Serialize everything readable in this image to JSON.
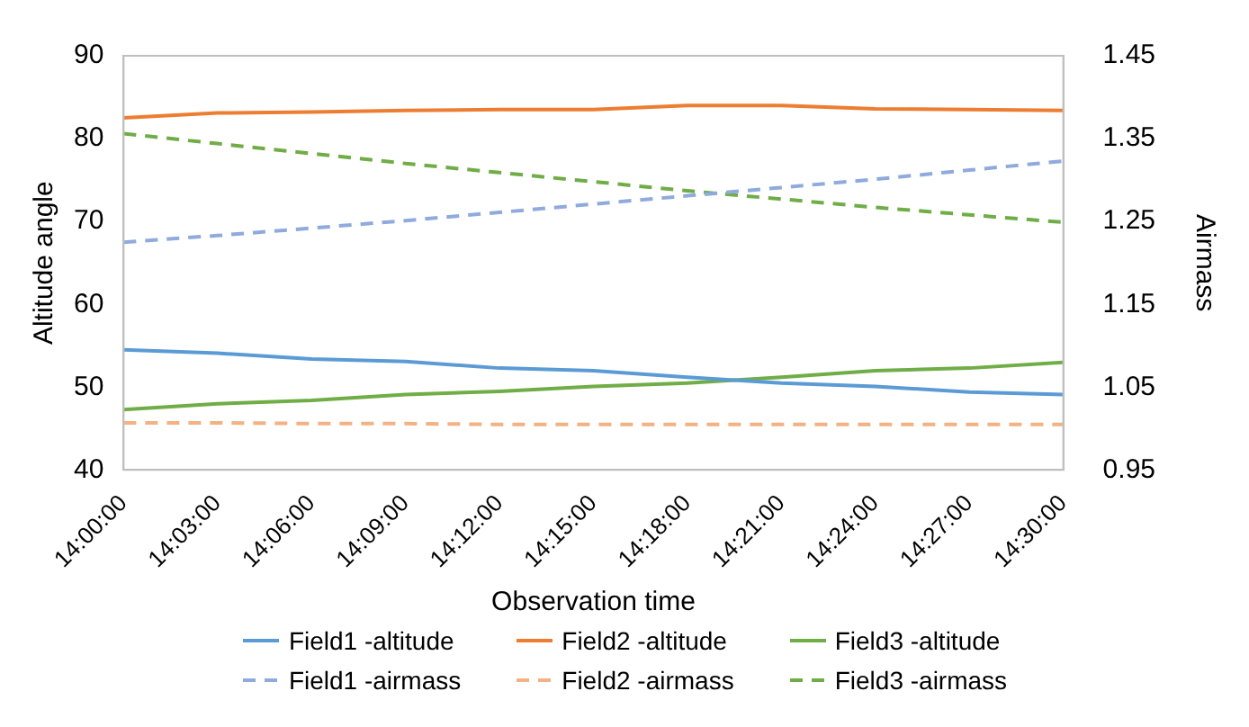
{
  "chart_data": {
    "type": "line",
    "xlabel": "Observation time",
    "ylabel": "Altitude angle",
    "y2label": "Airmass",
    "categories": [
      "14:00:00",
      "14:03:00",
      "14:06:00",
      "14:09:00",
      "14:12:00",
      "14:15:00",
      "14:18:00",
      "14:21:00",
      "14:24:00",
      "14:27:00",
      "14:30:00"
    ],
    "series": [
      {
        "name": "Field1 -altitude",
        "color": "#5b9bd5",
        "line_style": "solid",
        "values": [
          54.5,
          54.1,
          53.4,
          53.1,
          52.3,
          52.0,
          51.2,
          50.5,
          50.1,
          49.4,
          49.1
        ]
      },
      {
        "name": "Field2 -altitude",
        "color": "#ed7d31",
        "line_style": "solid",
        "values": [
          82.5,
          83.1,
          83.2,
          83.4,
          83.5,
          83.5,
          84.0,
          84.0,
          83.6,
          83.5,
          83.4
        ]
      },
      {
        "name": "Field3 -altitude",
        "color": "#70ad47",
        "line_style": "solid",
        "values": [
          47.3,
          48.0,
          48.4,
          49.1,
          49.5,
          50.1,
          50.5,
          51.2,
          52.0,
          52.3,
          53.0
        ]
      },
      {
        "name": "Field1 -airmass",
        "color": "#8faadc",
        "line_style": "dashed",
        "axis": "y2",
        "values": [
          1.225,
          1.233,
          1.242,
          1.251,
          1.261,
          1.271,
          1.281,
          1.291,
          1.301,
          1.312,
          1.323
        ]
      },
      {
        "name": "Field2 -airmass",
        "color": "#f4b183",
        "line_style": "dashed",
        "axis": "y2",
        "values": [
          1.007,
          1.007,
          1.006,
          1.006,
          1.005,
          1.005,
          1.005,
          1.005,
          1.005,
          1.005,
          1.005
        ]
      },
      {
        "name": "Field3 -airmass",
        "color": "#70ad47",
        "line_style": "dashed",
        "axis": "y2",
        "values": [
          1.356,
          1.344,
          1.332,
          1.32,
          1.309,
          1.298,
          1.287,
          1.277,
          1.267,
          1.258,
          1.249
        ]
      }
    ],
    "ylim": [
      40,
      90
    ],
    "yticks": [
      40,
      50,
      60,
      70,
      80,
      90
    ],
    "y2lim": [
      0.95,
      1.45
    ],
    "y2ticks": [
      0.95,
      1.05,
      1.15,
      1.25,
      1.35,
      1.45
    ],
    "grid": false,
    "legend": "bottom",
    "marker": "none"
  }
}
